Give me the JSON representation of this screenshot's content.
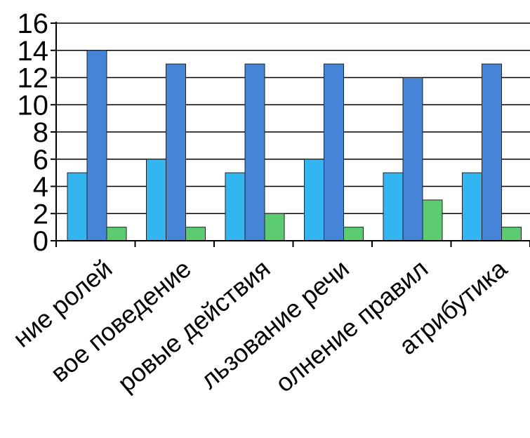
{
  "chart_data": {
    "type": "bar",
    "title": "",
    "xlabel": "",
    "ylabel": "",
    "ylim": [
      0,
      16
    ],
    "y_ticks": [
      0,
      2,
      4,
      6,
      8,
      10,
      12,
      14,
      16
    ],
    "grid": true,
    "legend": "none",
    "categories": [
      "ние ролей",
      "вое поведение",
      "ровые действия",
      "льзование речи",
      "олнение правил",
      "атрибутика"
    ],
    "series": [
      {
        "color": "#33b5f2",
        "values": [
          5,
          6,
          5,
          6,
          5,
          5
        ]
      },
      {
        "color": "#4584d6",
        "values": [
          14,
          13,
          13,
          13,
          12,
          13
        ]
      },
      {
        "color": "#5ccb72",
        "values": [
          1,
          1,
          2,
          1,
          3,
          1
        ]
      }
    ]
  }
}
